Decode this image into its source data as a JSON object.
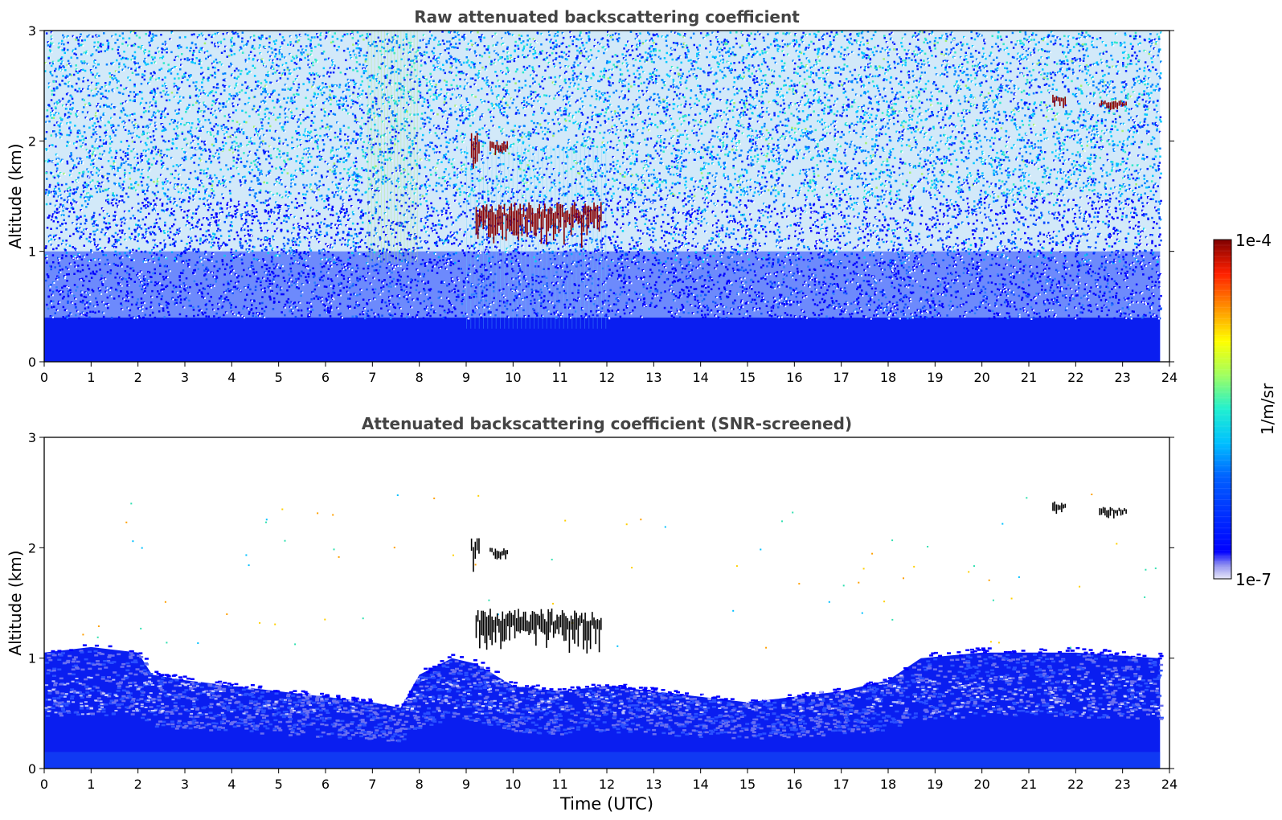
{
  "chart_data": [
    {
      "type": "heatmap",
      "title": "Raw attenuated backscattering coefficient",
      "xlabel": "",
      "ylabel": "Altitude (km)",
      "xlim": [
        0,
        24
      ],
      "ylim": [
        0,
        3
      ],
      "x_ticks": [
        "0",
        "1",
        "2",
        "3",
        "4",
        "5",
        "6",
        "7",
        "8",
        "9",
        "10",
        "11",
        "12",
        "13",
        "14",
        "15",
        "16",
        "17",
        "18",
        "19",
        "20",
        "21",
        "22",
        "23",
        "24"
      ],
      "y_ticks": [
        "0",
        "1",
        "2",
        "3"
      ],
      "data_extent_x": [
        0,
        23.8
      ],
      "grid": false,
      "features": {
        "noise_level_description": "dense noisy blue/cyan speckle",
        "boundary_layer_top_km": 0.4,
        "clouds": [
          {
            "t_start": 9.1,
            "t_end": 9.3,
            "alt_bottom": 1.8,
            "alt_top": 2.1
          },
          {
            "t_start": 9.5,
            "t_end": 9.9,
            "alt_bottom": 1.9,
            "alt_top": 2.0
          },
          {
            "t_start": 9.2,
            "t_end": 11.9,
            "alt_bottom": 1.15,
            "alt_top": 1.45
          },
          {
            "t_start": 21.5,
            "t_end": 21.8,
            "alt_bottom": 2.33,
            "alt_top": 2.42
          },
          {
            "t_start": 22.5,
            "t_end": 23.1,
            "alt_bottom": 2.29,
            "alt_top": 2.37
          }
        ]
      }
    },
    {
      "type": "heatmap",
      "title": "Attenuated backscattering coefficient (SNR-screened)",
      "xlabel": "Time (UTC)",
      "ylabel": "Altitude (km)",
      "xlim": [
        0,
        24
      ],
      "ylim": [
        0,
        3
      ],
      "x_ticks": [
        "0",
        "1",
        "2",
        "3",
        "4",
        "5",
        "6",
        "7",
        "8",
        "9",
        "10",
        "11",
        "12",
        "13",
        "14",
        "15",
        "16",
        "17",
        "18",
        "19",
        "20",
        "21",
        "22",
        "23",
        "24"
      ],
      "y_ticks": [
        "0",
        "1",
        "2",
        "3"
      ],
      "data_extent_x": [
        0,
        23.8
      ],
      "grid": false,
      "features": {
        "signal_top_km": [
          [
            0,
            1.05
          ],
          [
            1,
            1.1
          ],
          [
            2,
            1.05
          ],
          [
            2.3,
            0.85
          ],
          [
            3,
            0.8
          ],
          [
            4,
            0.75
          ],
          [
            5,
            0.7
          ],
          [
            6,
            0.65
          ],
          [
            7,
            0.6
          ],
          [
            7.6,
            0.55
          ],
          [
            8,
            0.85
          ],
          [
            8.7,
            1.0
          ],
          [
            9.2,
            0.95
          ],
          [
            10,
            0.75
          ],
          [
            11,
            0.7
          ],
          [
            12,
            0.75
          ],
          [
            13,
            0.7
          ],
          [
            14,
            0.65
          ],
          [
            15,
            0.6
          ],
          [
            16,
            0.65
          ],
          [
            17,
            0.7
          ],
          [
            18,
            0.8
          ],
          [
            18.7,
            1.0
          ],
          [
            20,
            1.05
          ],
          [
            22,
            1.05
          ],
          [
            23.8,
            1.0
          ]
        ],
        "clouds": [
          {
            "t_start": 9.1,
            "t_end": 9.3,
            "alt_bottom": 1.8,
            "alt_top": 2.1
          },
          {
            "t_start": 9.5,
            "t_end": 9.9,
            "alt_bottom": 1.9,
            "alt_top": 2.0
          },
          {
            "t_start": 9.2,
            "t_end": 11.9,
            "alt_bottom": 1.15,
            "alt_top": 1.45
          },
          {
            "t_start": 21.5,
            "t_end": 21.8,
            "alt_bottom": 2.33,
            "alt_top": 2.42
          },
          {
            "t_start": 22.5,
            "t_end": 23.1,
            "alt_bottom": 2.29,
            "alt_top": 2.37
          }
        ]
      }
    }
  ],
  "colorbar": {
    "label": "1/m/sr",
    "max_label": "1e-4",
    "min_label": "1e-7",
    "colormap": "jet",
    "scale": "log",
    "range": [
      1e-07,
      0.0001
    ]
  },
  "colors": {
    "title": "#444444",
    "axis": "#000000",
    "bl_blue": "#0a1ef0",
    "cloud_red": "#8b0000",
    "cloud_black": "#000000"
  }
}
